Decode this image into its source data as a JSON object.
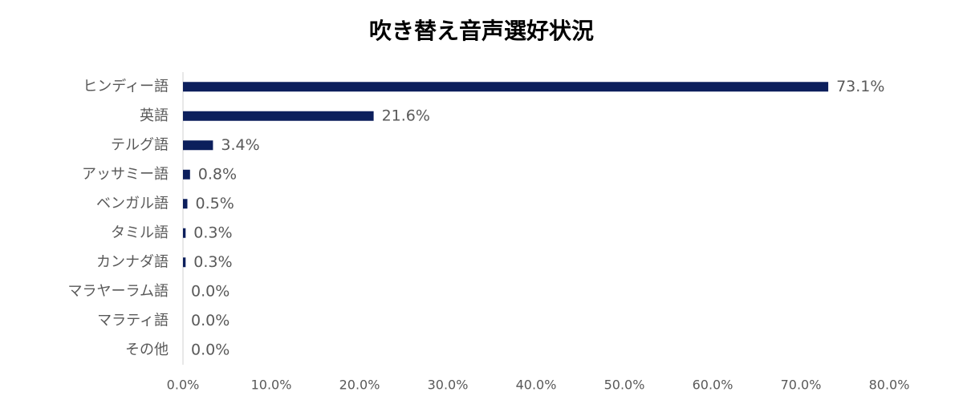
{
  "chart_data": {
    "type": "barh",
    "title": "吹き替え音声選好状況",
    "categories": [
      "ヒンディー語",
      "英語",
      "テルグ語",
      "アッサミー語",
      "ベンガル語",
      "タミル語",
      "カンナダ語",
      "マラヤーラム語",
      "マラティ語",
      "その他"
    ],
    "values": [
      73.1,
      21.6,
      3.4,
      0.8,
      0.5,
      0.3,
      0.3,
      0.0,
      0.0,
      0.0
    ],
    "value_labels": [
      "73.1%",
      "21.6%",
      "3.4%",
      "0.8%",
      "0.5%",
      "0.3%",
      "0.3%",
      "0.0%",
      "0.0%",
      "0.0%"
    ],
    "color": "#0c1f5c",
    "xlim": [
      0,
      80
    ],
    "xticks": [
      {
        "value": 0,
        "label": "0.0%"
      },
      {
        "value": 10,
        "label": "10.0%"
      },
      {
        "value": 20,
        "label": "20.0%"
      },
      {
        "value": 30,
        "label": "30.0%"
      },
      {
        "value": 40,
        "label": "40.0%"
      },
      {
        "value": 50,
        "label": "50.0%"
      },
      {
        "value": 60,
        "label": "60.0%"
      },
      {
        "value": 70,
        "label": "70.0%"
      },
      {
        "value": 80,
        "label": "80.0%"
      }
    ],
    "grid": false
  }
}
